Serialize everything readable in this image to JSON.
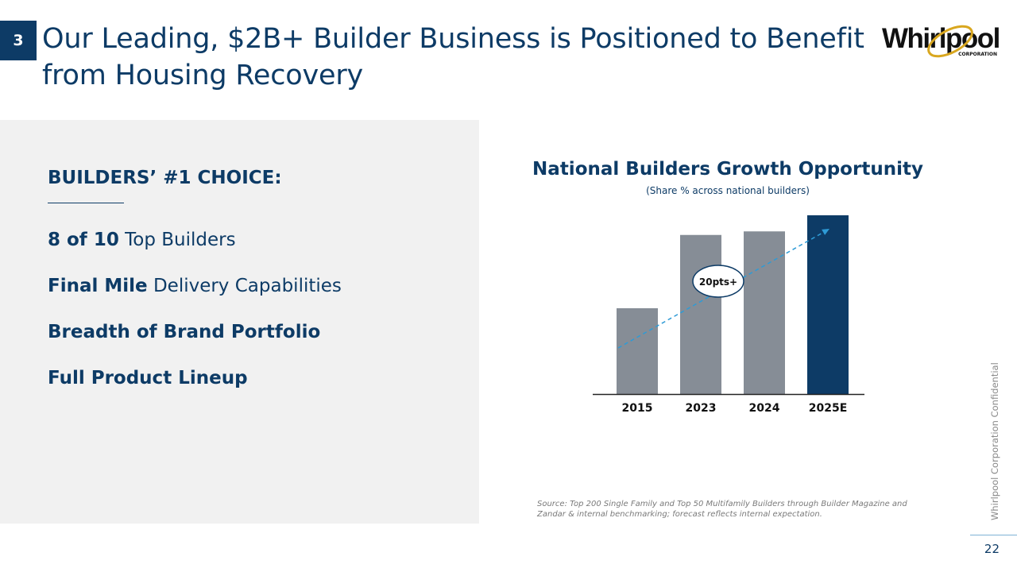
{
  "header": {
    "section_number": "3",
    "title": "Our Leading, $2B+ Builder Business is Positioned to Benefit from Housing Recovery",
    "logo_text": "Whirlpool",
    "logo_subtext": "CORPORATION"
  },
  "left_panel": {
    "heading": "BUILDERS’ #1 CHOICE:",
    "items": [
      {
        "strong": "8 of 10",
        "rest": " Top Builders"
      },
      {
        "strong": "Final Mile",
        "rest": " Delivery Capabilities"
      },
      {
        "strong": "Breadth of Brand Portfolio",
        "rest": ""
      },
      {
        "strong": "Full Product Lineup",
        "rest": ""
      }
    ]
  },
  "chart_data": {
    "type": "bar",
    "title": "National Builders Growth Opportunity",
    "subtitle": "(Share % across national builders)",
    "categories": [
      "2015",
      "2023",
      "2024",
      "2025E"
    ],
    "values": [
      48,
      89,
      91,
      100
    ],
    "ylim": [
      0,
      100
    ],
    "axis_labels_shown": false,
    "grid": false,
    "bar_colors": [
      "#868d96",
      "#868d96",
      "#868d96",
      "#0d3b66"
    ],
    "trend_arrow": {
      "from": "2015",
      "to": "2025E",
      "label": "20pts+",
      "color": "#2e9bd6",
      "style": "dashed"
    }
  },
  "footer": {
    "source": "Source: Top 200 Single Family and Top 50 Multifamily Builders through Builder Magazine and Zandar & internal benchmarking; forecast reflects internal expectation.",
    "confidential": "Whirlpool Corporation Confidential",
    "page_number": "22"
  },
  "colors": {
    "brand_navy": "#0d3b66",
    "bar_gray": "#868d96",
    "panel_bg": "#f1f1f1",
    "logo_gold": "#d9a71f",
    "trend_blue": "#2e9bd6"
  }
}
